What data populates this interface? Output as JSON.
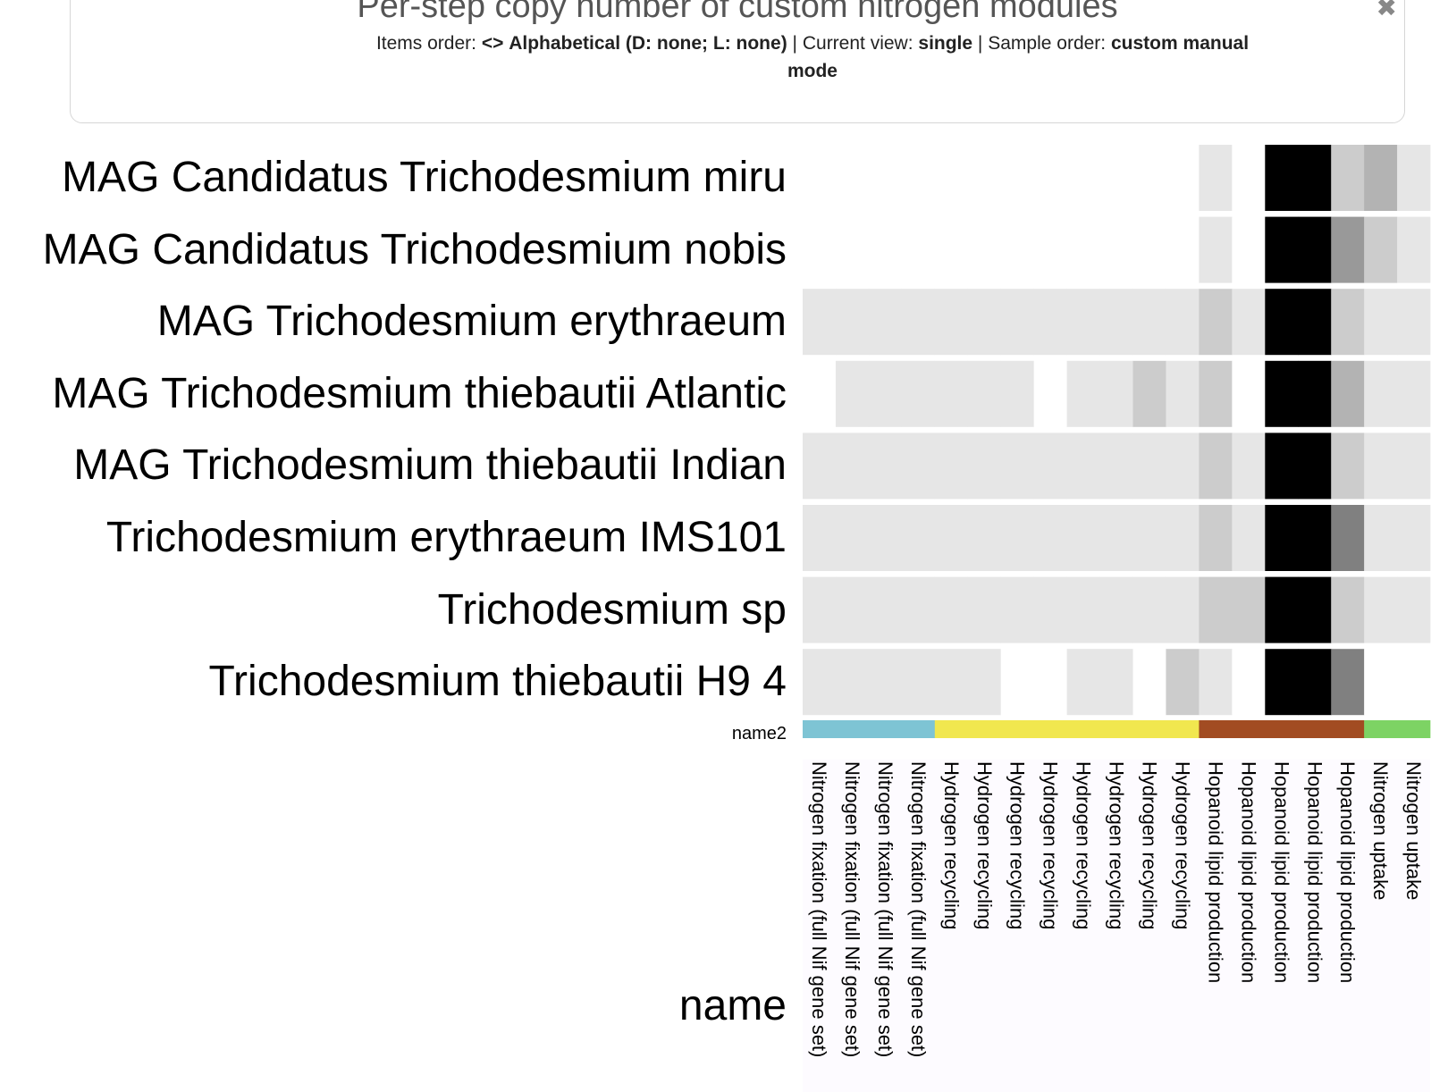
{
  "header": {
    "title": "Per-step copy number of custom nitrogen modules",
    "items_order_label": "Items order:",
    "items_order_icon": "swap-arrows-icon",
    "items_order_value": "Alphabetical (D: none; L: none)",
    "current_view_label": "Current view:",
    "current_view_value": "single",
    "sample_order_label": "Sample order:",
    "sample_order_value": "custom",
    "mode_value": "manual mode",
    "separator": "|",
    "close_icon": "close-icon"
  },
  "chart_data": {
    "type": "heatmap",
    "rows": [
      "MAG Candidatus Trichodesmium miru",
      "MAG Candidatus Trichodesmium nobis",
      "MAG Trichodesmium erythraeum",
      "MAG Trichodesmium thiebautii Atlantic",
      "MAG Trichodesmium thiebautii Indian",
      "Trichodesmium erythraeum IMS101",
      "Trichodesmium sp",
      "Trichodesmium thiebautii H9 4"
    ],
    "columns": [
      "Nitrogen fixation (full Nif gene set)",
      "Nitrogen fixation (full Nif gene set)",
      "Nitrogen fixation (full Nif gene set)",
      "Nitrogen fixation (full Nif gene set)",
      "Hydrogen recycling",
      "Hydrogen recycling",
      "Hydrogen recycling",
      "Hydrogen recycling",
      "Hydrogen recycling",
      "Hydrogen recycling",
      "Hydrogen recycling",
      "Hydrogen recycling",
      "Hopanoid lipid production",
      "Hopanoid lipid production",
      "Hopanoid lipid production",
      "Hopanoid lipid production",
      "Hopanoid lipid production",
      "Nitrogen uptake",
      "Nitrogen uptake"
    ],
    "values": [
      [
        0,
        0,
        0,
        0,
        0,
        0,
        0,
        0,
        0,
        0,
        0,
        0,
        1,
        0,
        10,
        10,
        2,
        3,
        1
      ],
      [
        0,
        0,
        0,
        0,
        0,
        0,
        0,
        0,
        0,
        0,
        0,
        0,
        1,
        0,
        10,
        10,
        4,
        2,
        1
      ],
      [
        1,
        1,
        1,
        1,
        1,
        1,
        1,
        1,
        1,
        1,
        1,
        1,
        2,
        1,
        10,
        10,
        2,
        1,
        1
      ],
      [
        0,
        1,
        1,
        1,
        1,
        1,
        1,
        0,
        1,
        1,
        2,
        1,
        2,
        0,
        10,
        10,
        3,
        1,
        1
      ],
      [
        1,
        1,
        1,
        1,
        1,
        1,
        1,
        1,
        1,
        1,
        1,
        1,
        2,
        1,
        10,
        10,
        2,
        1,
        1
      ],
      [
        1,
        1,
        1,
        1,
        1,
        1,
        1,
        1,
        1,
        1,
        1,
        1,
        2,
        1,
        10,
        10,
        5,
        1,
        1
      ],
      [
        1,
        1,
        1,
        1,
        1,
        1,
        1,
        1,
        1,
        1,
        1,
        1,
        2,
        2,
        10,
        10,
        2,
        1,
        1
      ],
      [
        1,
        1,
        1,
        1,
        1,
        1,
        0,
        0,
        1,
        1,
        0,
        2,
        1,
        0,
        10,
        10,
        5,
        0,
        0
      ]
    ],
    "color_scale": {
      "min_color": "#e6e6e6",
      "max_color": "#000000",
      "empty_color": "#ffffff",
      "max_value": 10
    },
    "legend": {
      "label": "name2",
      "categories": [
        {
          "name": "Nitrogen fixation (full Nif gene set)",
          "color": "#7ec4d4",
          "count": 4
        },
        {
          "name": "Hydrogen recycling",
          "color": "#f1e74f",
          "count": 8
        },
        {
          "name": "Hopanoid lipid production",
          "color": "#a24c22",
          "count": 5
        },
        {
          "name": "Nitrogen uptake",
          "color": "#7dd364",
          "count": 2
        }
      ]
    },
    "xlabel": "name",
    "ylabel": ""
  }
}
